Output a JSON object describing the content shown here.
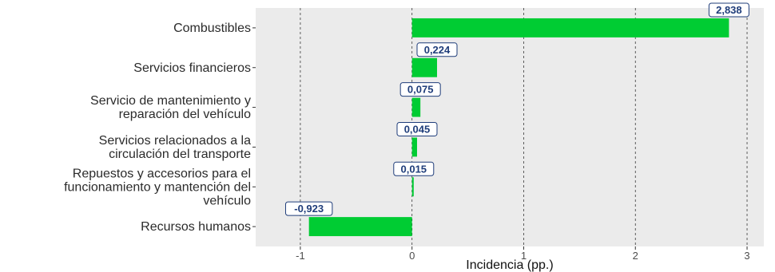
{
  "chart_data": {
    "type": "bar",
    "orientation": "horizontal",
    "categories": [
      [
        "Combustibles"
      ],
      [
        "Servicios financieros"
      ],
      [
        "Servicio de mantenimiento y",
        "reparación del vehículo"
      ],
      [
        "Servicios relacionados a la",
        "circulación del transporte"
      ],
      [
        "Repuestos y accesorios para el",
        "funcionamiento y mantención del",
        "vehículo"
      ],
      [
        "Recursos humanos"
      ]
    ],
    "values": [
      2.838,
      0.224,
      0.075,
      0.045,
      0.015,
      -0.923
    ],
    "data_labels": [
      "2,838",
      "0,224",
      "0,075",
      "0,045",
      "0,015",
      "-0,923"
    ],
    "xlabel": "Incidencia (pp.)",
    "ylabel": "",
    "title": "",
    "xlim": [
      -1.4,
      3.15
    ],
    "x_ticks": [
      -1,
      0,
      1,
      2,
      3
    ],
    "x_tick_labels": [
      "-1",
      "0",
      "1",
      "2",
      "3"
    ],
    "grid": "vertical dashed",
    "colors": {
      "bar": "#00cc33",
      "panel_background": "#ebebeb",
      "grid": "#3a3a3a",
      "label_text": "#1f3d7a",
      "label_border": "#1f3d7a"
    }
  }
}
